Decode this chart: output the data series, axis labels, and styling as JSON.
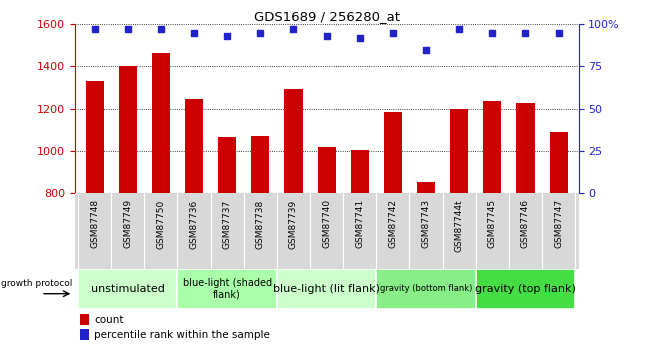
{
  "title": "GDS1689 / 256280_at",
  "samples": [
    "GSM87748",
    "GSM87749",
    "GSM87750",
    "GSM87736",
    "GSM87737",
    "GSM87738",
    "GSM87739",
    "GSM87740",
    "GSM87741",
    "GSM87742",
    "GSM87743",
    "GSM87744t",
    "GSM87745",
    "GSM87746",
    "GSM87747"
  ],
  "counts": [
    1330,
    1400,
    1465,
    1245,
    1065,
    1070,
    1295,
    1020,
    1005,
    1185,
    855,
    1200,
    1235,
    1225,
    1090
  ],
  "percentiles": [
    97,
    97,
    97,
    95,
    93,
    95,
    97,
    93,
    92,
    95,
    85,
    97,
    95,
    95,
    95
  ],
  "ylim_left": [
    800,
    1600
  ],
  "ylim_right": [
    0,
    100
  ],
  "yticks_left": [
    800,
    1000,
    1200,
    1400,
    1600
  ],
  "yticks_right": [
    0,
    25,
    50,
    75,
    100
  ],
  "bar_color": "#cc0000",
  "dot_color": "#2222cc",
  "groups": [
    {
      "label": "unstimulated",
      "start": 0,
      "end": 3,
      "color": "#ccffcc",
      "fontsize": 8
    },
    {
      "label": "blue-light (shaded\nflank)",
      "start": 3,
      "end": 6,
      "color": "#aaffaa",
      "fontsize": 7
    },
    {
      "label": "blue-light (lit flank)",
      "start": 6,
      "end": 9,
      "color": "#ccffcc",
      "fontsize": 8
    },
    {
      "label": "gravity (bottom flank)",
      "start": 9,
      "end": 12,
      "color": "#88ee88",
      "fontsize": 6
    },
    {
      "label": "gravity (top flank)",
      "start": 12,
      "end": 15,
      "color": "#44dd44",
      "fontsize": 8
    }
  ],
  "growth_protocol_label": "growth protocol",
  "legend_count_label": "count",
  "legend_percentile_label": "percentile rank within the sample",
  "title_color": "#000000",
  "left_axis_color": "#cc0000",
  "right_axis_color": "#2222cc",
  "label_bg_color": "#d8d8d8",
  "group_border_color": "#ffffff"
}
